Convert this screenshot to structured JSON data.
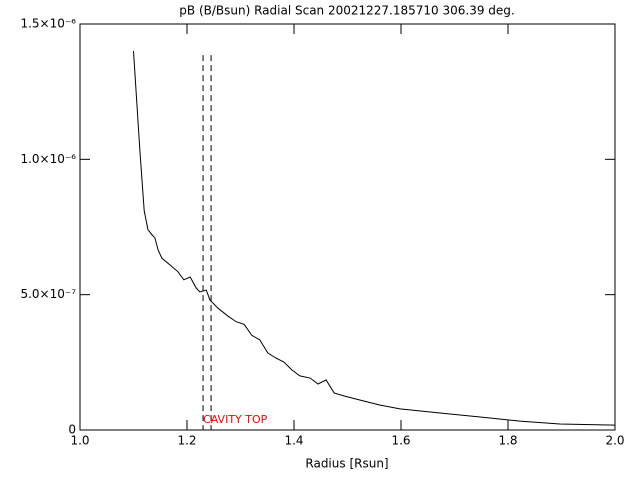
{
  "chart_data": {
    "type": "line",
    "title": "pB (B/Bsun) Radial Scan 20021227.185710 306.39 deg.",
    "xlabel": "Radius [Rsun]",
    "x": [
      1.1,
      1.112,
      1.12,
      1.127,
      1.135,
      1.14,
      1.146,
      1.153,
      1.168,
      1.183,
      1.194,
      1.206,
      1.217,
      1.224,
      1.236,
      1.243,
      1.258,
      1.277,
      1.292,
      1.307,
      1.321,
      1.336,
      1.351,
      1.366,
      1.381,
      1.396,
      1.411,
      1.43,
      1.445,
      1.46,
      1.475,
      1.493,
      1.523,
      1.561,
      1.598,
      1.673,
      1.748,
      1.822,
      1.897,
      2.0
    ],
    "values": [
      1.4e-06,
      1.03e-06,
      8.1e-07,
      7.4e-07,
      7.2e-07,
      7.1e-07,
      6.65e-07,
      6.35e-07,
      6.1e-07,
      5.85e-07,
      5.55e-07,
      5.65e-07,
      5.25e-07,
      5.1e-07,
      5.17e-07,
      4.8e-07,
      4.5e-07,
      4.2e-07,
      4e-07,
      3.9e-07,
      3.5e-07,
      3.33e-07,
      2.85e-07,
      2.66e-07,
      2.51e-07,
      2.22e-07,
      2e-07,
      1.92e-07,
      1.7e-07,
      1.85e-07,
      1.37e-07,
      1.26e-07,
      1.11e-07,
      9.2e-08,
      7.8e-08,
      6.3e-08,
      4.8e-08,
      3.3e-08,
      2.2e-08,
      1.8e-08
    ],
    "color": "#000000",
    "xlim": [
      1.0,
      2.0
    ],
    "ylim": [
      0,
      1.5e-06
    ],
    "xticks": [
      {
        "value": 1.0,
        "label": "1.0"
      },
      1.2,
      1.4,
      1.6,
      1.8,
      {
        "value": 2.0,
        "label": "2.0"
      }
    ],
    "yticks": [
      0,
      {
        "value": 5e-07,
        "label": "5.0×10⁻⁷"
      },
      {
        "value": 1e-06,
        "label": "1.0×10⁻⁶"
      },
      {
        "value": 1.5e-06,
        "label": "1.5×10⁻⁶"
      }
    ],
    "vlines": {
      "x": [
        1.23,
        1.245
      ],
      "ymax": 1.385e-06
    },
    "annotation": "CAVITY TOP",
    "annotation_color": "#ff0000"
  }
}
